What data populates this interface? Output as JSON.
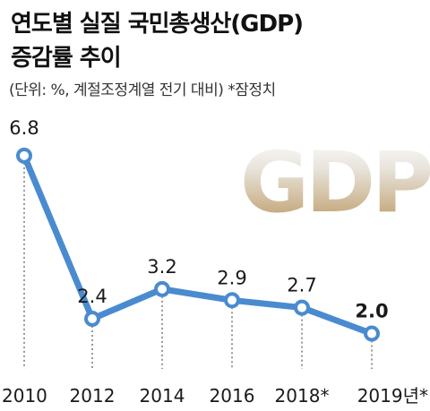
{
  "chart_data": {
    "type": "line",
    "title": "연도별 실질 국민총생산(GDP)",
    "title_line2": "증감률 추이",
    "subtitle": "(단위: %, 계절조정계열 전기 대비) *잠정치",
    "watermark": "GDP",
    "categories": [
      "2010",
      "2012",
      "2014",
      "2016",
      "2018*",
      "2019년*"
    ],
    "series": [
      {
        "values": [
          6.8,
          2.4,
          3.2,
          2.9,
          2.7,
          2.0
        ],
        "value_labels": [
          "6.8",
          "2.4",
          "3.2",
          "2.9",
          "2.7",
          "2.0"
        ]
      }
    ],
    "highlight_last": true,
    "line_color": "#4a8bd0",
    "grid": false
  }
}
